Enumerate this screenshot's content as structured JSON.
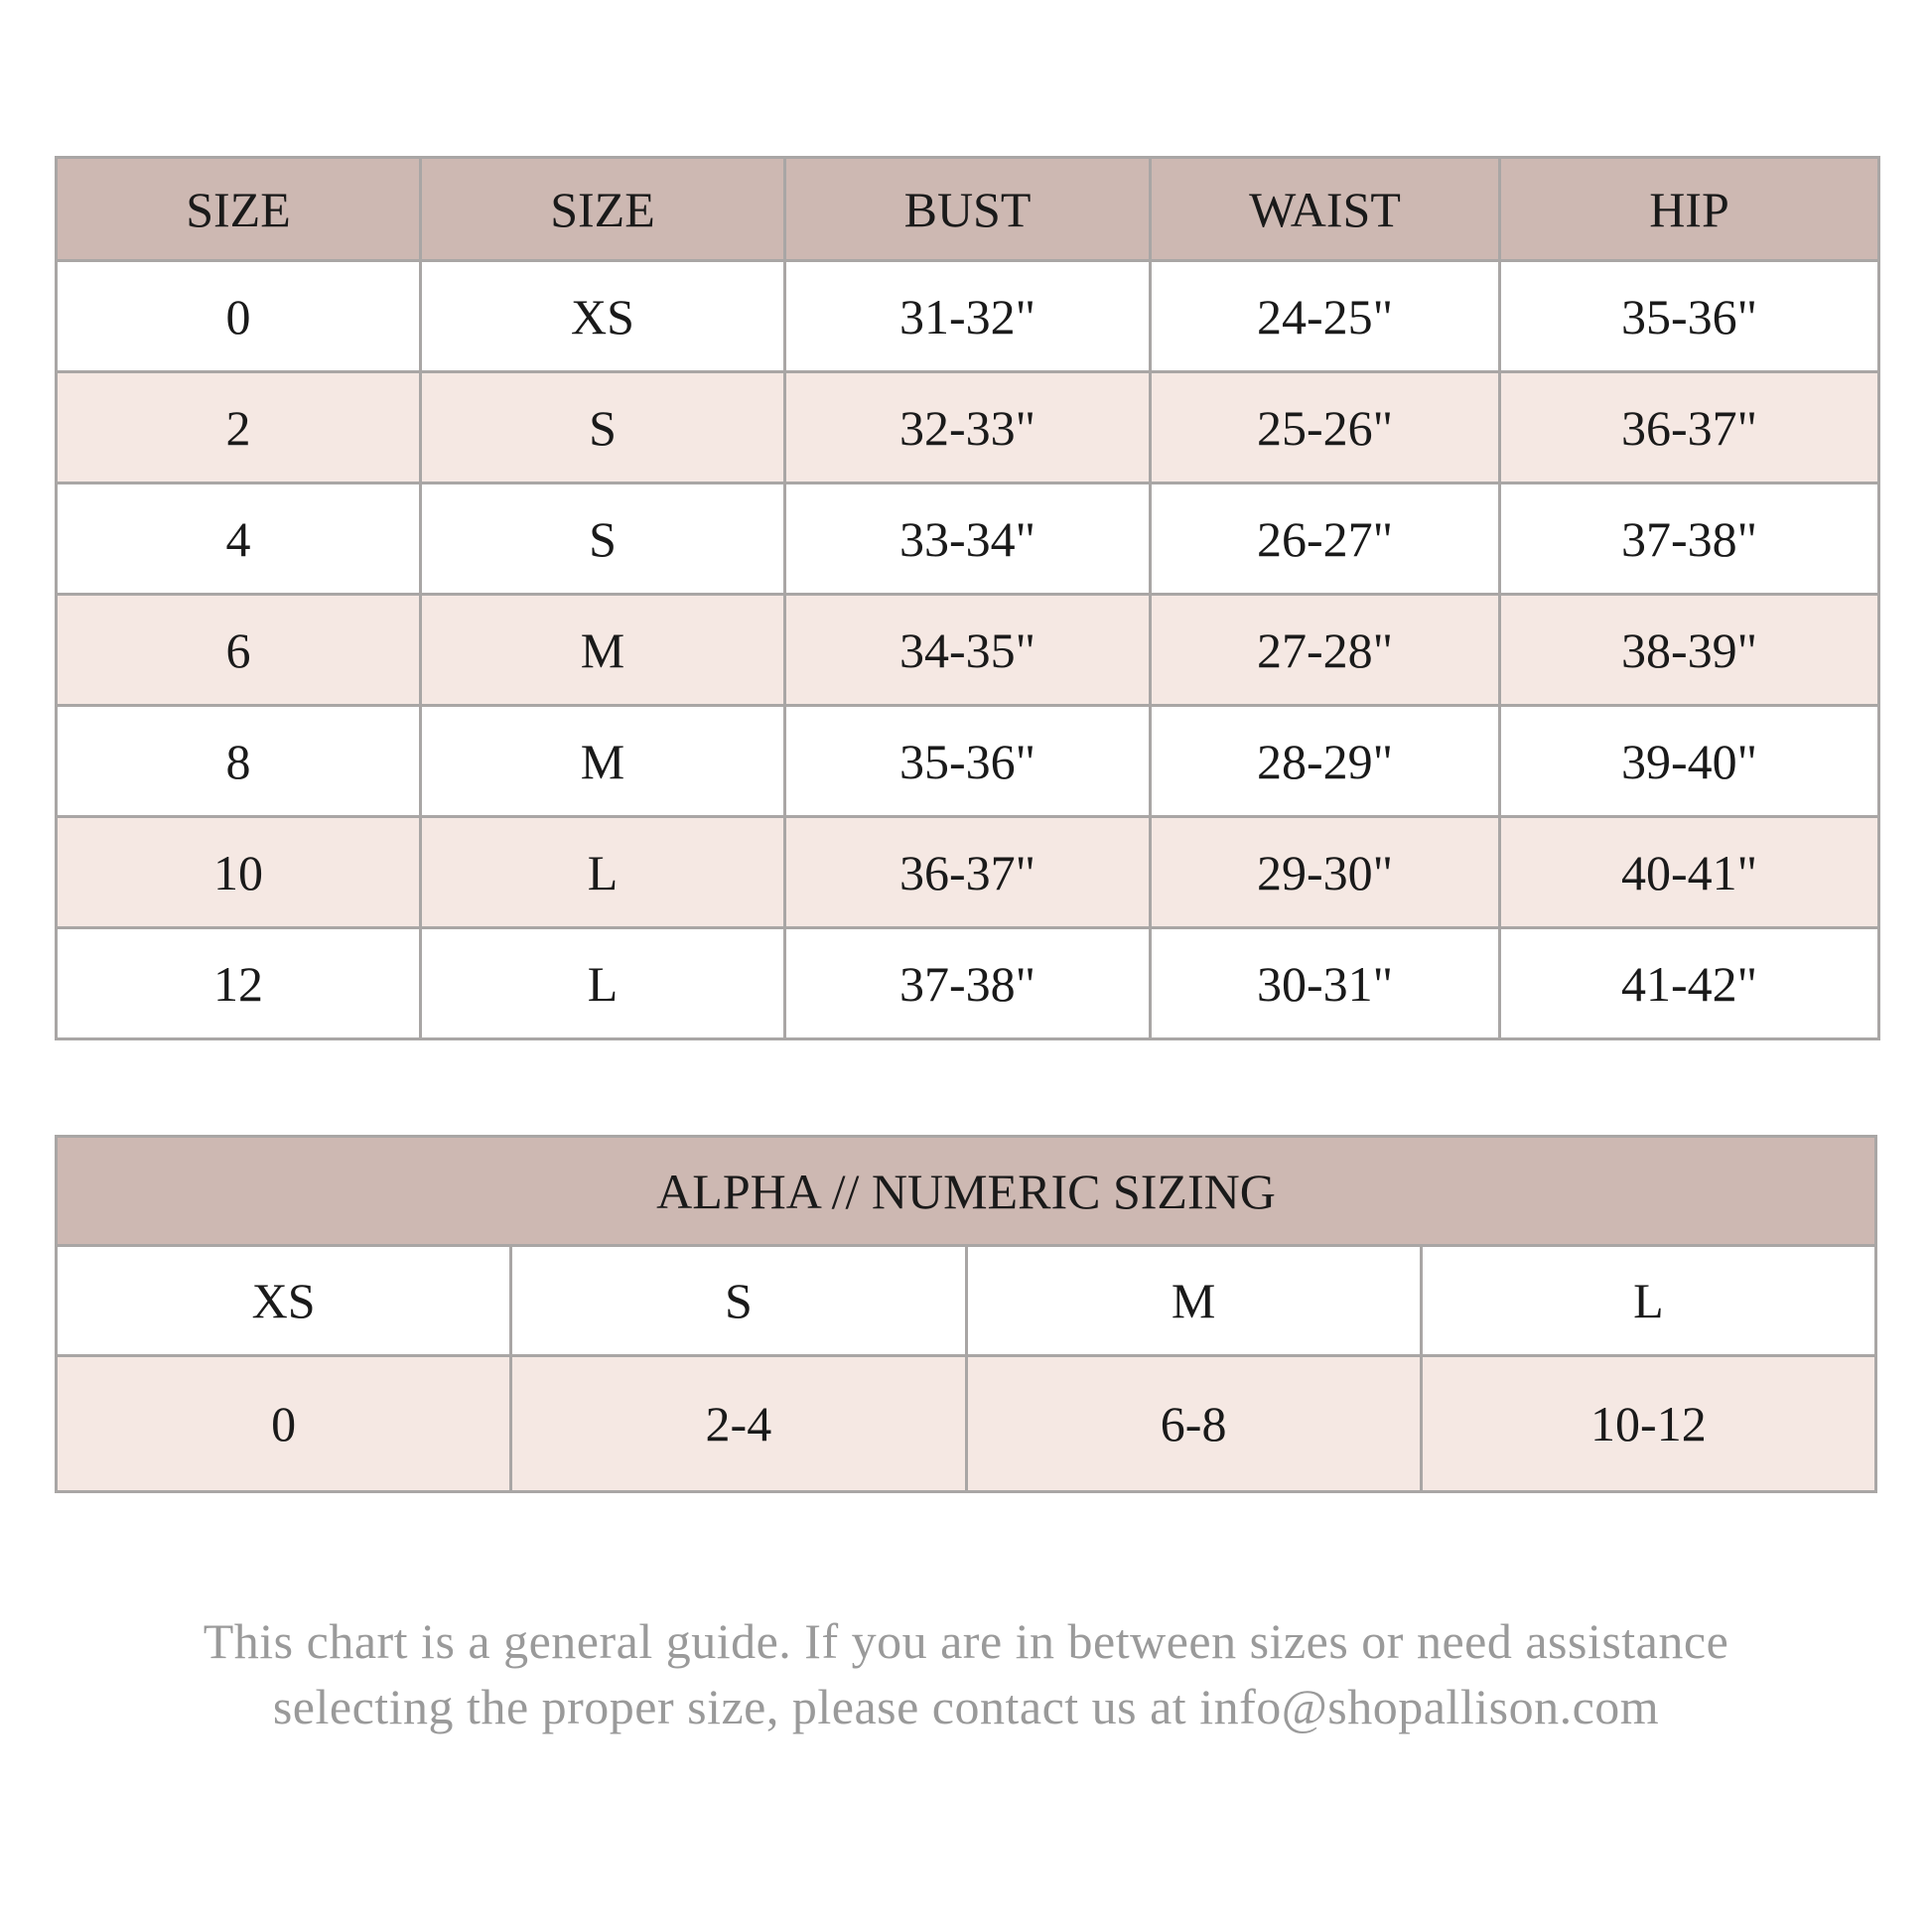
{
  "size_table": {
    "headers": [
      "SIZE",
      "SIZE",
      "BUST",
      "WAIST",
      "HIP"
    ],
    "rows": [
      [
        "0",
        "XS",
        "31-32\"",
        "24-25\"",
        "35-36\""
      ],
      [
        "2",
        "S",
        "32-33\"",
        "25-26\"",
        "36-37\""
      ],
      [
        "4",
        "S",
        "33-34\"",
        "26-27\"",
        "37-38\""
      ],
      [
        "6",
        "M",
        "34-35\"",
        "27-28\"",
        "38-39\""
      ],
      [
        "8",
        "M",
        "35-36\"",
        "28-29\"",
        "39-40\""
      ],
      [
        "10",
        "L",
        "36-37\"",
        "29-30\"",
        "40-41\""
      ],
      [
        "12",
        "L",
        "37-38\"",
        "30-31\"",
        "41-42\""
      ]
    ]
  },
  "alpha_table": {
    "title": "ALPHA // NUMERIC SIZING",
    "alpha": [
      "XS",
      "S",
      "M",
      "L"
    ],
    "numeric": [
      "0",
      "2-4",
      "6-8",
      "10-12"
    ]
  },
  "footer": {
    "line1": "This chart is a general guide. If you are in between sizes or need assistance",
    "line2": "selecting the proper size, please contact us at info@shopallison.com"
  },
  "colors": {
    "header_bg": "#cdb8b2",
    "alt_row_bg": "#f5e8e3",
    "border": "#a9a6a5",
    "footer_text": "#9a9a9a"
  }
}
